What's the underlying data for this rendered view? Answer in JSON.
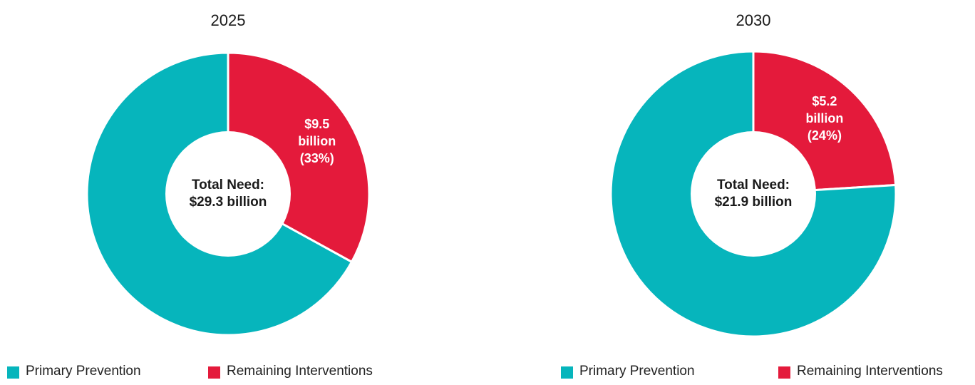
{
  "chart_data": [
    {
      "type": "donut",
      "title": "2025",
      "categories": [
        "Primary Prevention",
        "Remaining Interventions"
      ],
      "values": [
        67,
        33
      ],
      "value_labels": [
        null,
        "$9.5 billion (33%)"
      ],
      "colors": [
        "#06b5bc",
        "#e41a3b"
      ],
      "center_label": "Total Need: $29.3 billion"
    },
    {
      "type": "donut",
      "title": "2030",
      "categories": [
        "Primary Prevention",
        "Remaining Interventions"
      ],
      "values": [
        76,
        24
      ],
      "value_labels": [
        null,
        "$5.2 billion (24%)"
      ],
      "colors": [
        "#06b5bc",
        "#e41a3b"
      ],
      "center_label": "Total Need: $21.9 billion"
    }
  ]
}
